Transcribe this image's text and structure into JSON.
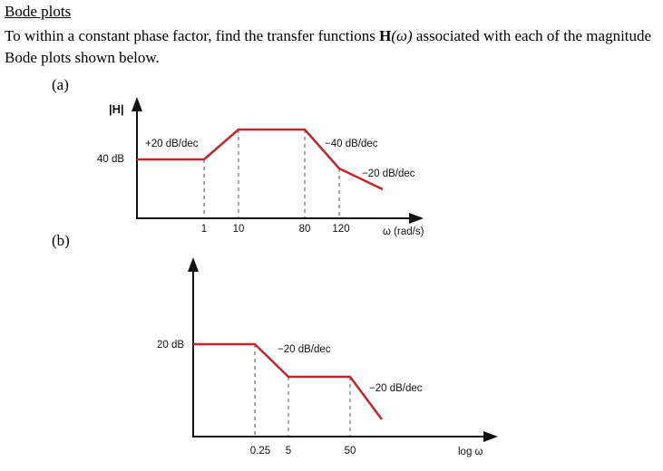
{
  "heading": "Bode plots",
  "problem": {
    "before": "To within a constant phase factor, find the transfer functions ",
    "func": "H",
    "arg": "(ω)",
    "after": " associated with each of the magnitude Bode plots shown below."
  },
  "chart_data": [
    {
      "id": "a",
      "label": "(a)",
      "type": "line",
      "ylabel": "|H|",
      "xlabel": "ω (rad/s)",
      "level_label": "40 dB",
      "x_ticks": [
        "1",
        "10",
        "80",
        "120"
      ],
      "corner_frequencies": [
        1,
        10,
        80,
        120
      ],
      "slope_labels": [
        "+20 dB/dec",
        "−40 dB/dec",
        "−20 dB/dec"
      ]
    },
    {
      "id": "b",
      "label": "(b)",
      "type": "line",
      "xlabel": "log ω",
      "level_label": "20 dB",
      "x_ticks": [
        "0.25",
        "5",
        "50"
      ],
      "corner_frequencies": [
        0.25,
        5,
        50
      ],
      "slope_labels": [
        "−20 dB/dec",
        "−20 dB/dec"
      ]
    }
  ]
}
